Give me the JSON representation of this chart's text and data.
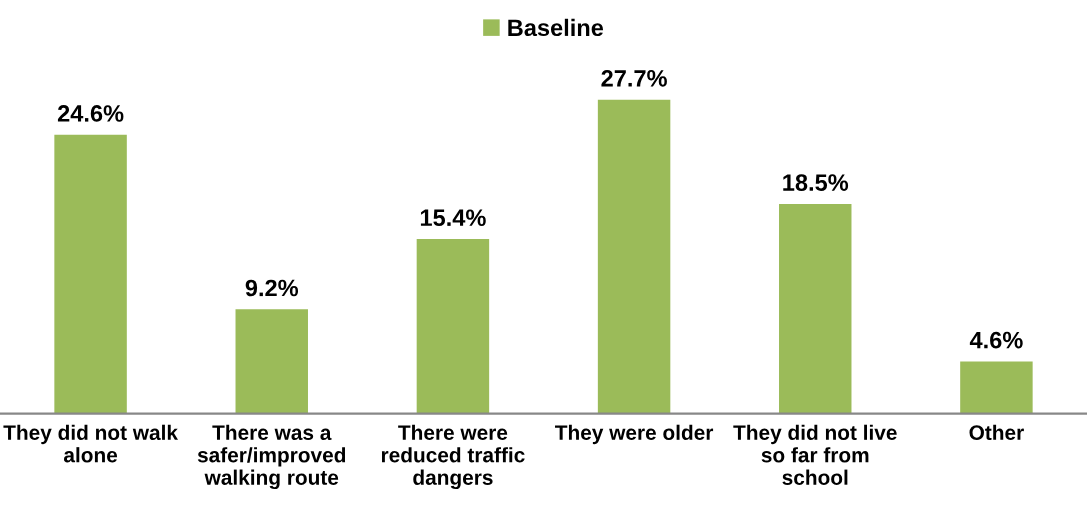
{
  "chart_data": {
    "type": "bar",
    "categories": [
      "They did not walk\nalone",
      "There was a\nsafer/improved\nwalking route",
      "There were\nreduced traffic\ndangers",
      "They were older",
      "They did not live\nso far from\nschool",
      "Other"
    ],
    "series": [
      {
        "name": "Baseline",
        "color": "#9bbb59",
        "values": [
          24.6,
          9.2,
          15.4,
          27.7,
          18.5,
          4.6
        ],
        "value_labels": [
          "24.6%",
          "9.2%",
          "15.4%",
          "27.7%",
          "18.5%",
          "4.6%"
        ]
      }
    ],
    "legend": "top",
    "grid": false
  }
}
